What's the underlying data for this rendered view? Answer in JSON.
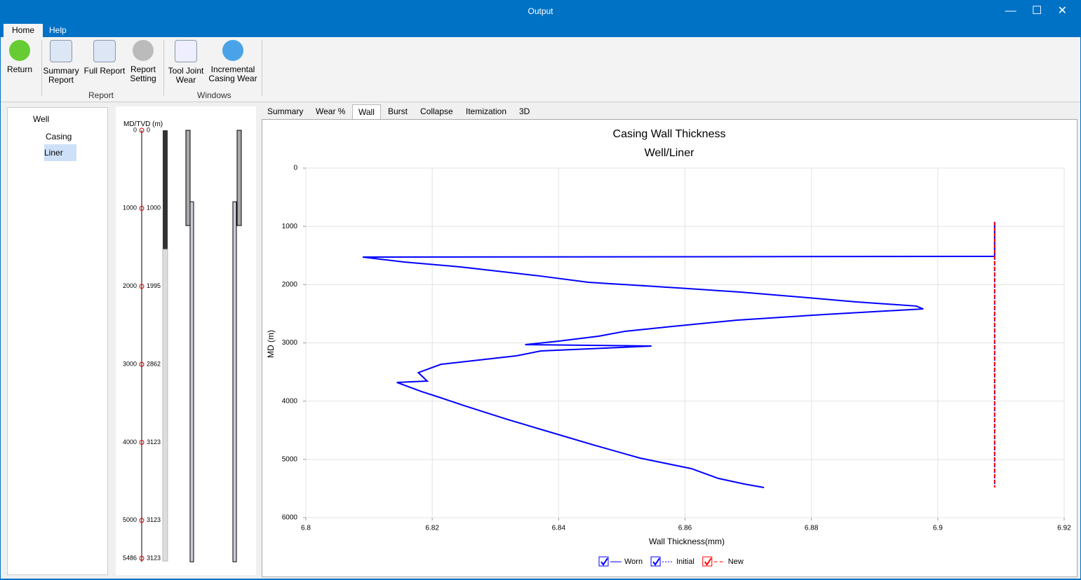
{
  "window": {
    "title": "Output"
  },
  "menu_tabs": [
    "Home",
    "Help"
  ],
  "ribbon": {
    "return": "Return",
    "groups": [
      {
        "name": "Report",
        "buttons": [
          "Summary Report",
          "Full Report",
          "Report Setting"
        ]
      },
      {
        "name": "Windows",
        "buttons": [
          "Tool Joint Wear",
          "Incremental Casing Wear"
        ]
      }
    ]
  },
  "tree": {
    "root": "Well",
    "children": [
      "Casing",
      "Liner"
    ]
  },
  "schematic": {
    "header": "MD/TVD (m)",
    "depths": [
      {
        "md": 0,
        "tvd": 0
      },
      {
        "md": 1000,
        "tvd": 1000
      },
      {
        "md": 2000,
        "tvd": 1995
      },
      {
        "md": 3000,
        "tvd": 2862
      },
      {
        "md": 4000,
        "tvd": 3123
      },
      {
        "md": 5000,
        "tvd": 3123
      },
      {
        "md": 5486,
        "tvd": 3123
      }
    ]
  },
  "chart_tabs": [
    "Summary",
    "Wear %",
    "Wall",
    "Burst",
    "Collapse",
    "Itemization",
    "3D"
  ],
  "chart_data": {
    "type": "line",
    "title": "Casing Wall Thickness",
    "subtitle": "Well/Liner",
    "x_label": "Wall Thickness(mm)",
    "y_label": "MD (m)",
    "xlim": [
      6.8,
      6.92
    ],
    "xticks": [
      6.8,
      6.82,
      6.84,
      6.86,
      6.88,
      6.9,
      6.92
    ],
    "ylim": [
      0,
      6000
    ],
    "yticks": [
      0,
      1000,
      2000,
      3000,
      4000,
      5000,
      6000
    ],
    "y_inverted": true,
    "grid": true,
    "legend": "bottom",
    "series": [
      {
        "name": "Worn",
        "color": "#0000ff",
        "style": "solid",
        "x": [
          6.909,
          6.909,
          6.809,
          6.8155,
          6.8244,
          6.837,
          6.8447,
          6.8588,
          6.8688,
          6.882,
          6.8871,
          6.8966,
          6.8977,
          6.882,
          6.8683,
          6.858,
          6.8505,
          6.8463,
          6.84,
          6.8347,
          6.8547,
          6.8372,
          6.8333,
          6.8214,
          6.8178,
          6.8192,
          6.8144,
          6.8183,
          6.8214,
          6.825,
          6.8316,
          6.8372,
          6.8458,
          6.8529,
          6.861,
          6.8653,
          6.8694,
          6.8725
        ],
        "y": [
          925,
          1515,
          1527,
          1611,
          1695,
          1851,
          1960,
          2056,
          2128,
          2248,
          2296,
          2368,
          2417,
          2513,
          2609,
          2717,
          2801,
          2886,
          2970,
          3030,
          3054,
          3138,
          3222,
          3367,
          3511,
          3655,
          3679,
          3835,
          3944,
          4076,
          4304,
          4485,
          4761,
          4978,
          5158,
          5327,
          5423,
          5483
        ]
      },
      {
        "name": "Initial",
        "color": "#0000ff",
        "style": "dotted",
        "x": [
          6.909,
          6.909
        ],
        "y": [
          925,
          5483
        ]
      },
      {
        "name": "New",
        "color": "#ff0000",
        "style": "dashed",
        "x": [
          6.909,
          6.909
        ],
        "y": [
          925,
          5483
        ]
      }
    ]
  }
}
